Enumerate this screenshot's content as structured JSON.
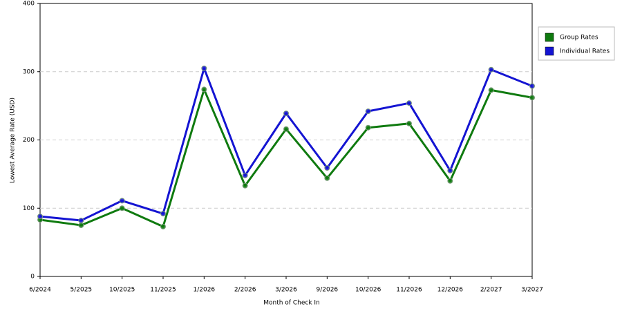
{
  "chart_data": {
    "type": "line",
    "x_label": "Month of Check In",
    "y_label": "Lowest Average Rate (USD)",
    "categories": [
      "6/2024",
      "5/2025",
      "10/2025",
      "11/2025",
      "1/2026",
      "2/2026",
      "3/2026",
      "9/2026",
      "10/2026",
      "11/2026",
      "12/2026",
      "2/2027",
      "3/2027"
    ],
    "series": [
      {
        "name": "Group Rates",
        "color": "#0f7a0f",
        "values": [
          83,
          75,
          100,
          73,
          274,
          133,
          216,
          144,
          218,
          224,
          140,
          273,
          262
        ]
      },
      {
        "name": "Individual Rates",
        "color": "#1414d2",
        "values": [
          88,
          82,
          111,
          92,
          305,
          148,
          239,
          159,
          242,
          254,
          155,
          303,
          279
        ]
      }
    ],
    "ylim": [
      0,
      400
    ],
    "yticks": [
      0,
      100,
      200,
      300,
      400
    ],
    "grid": true,
    "legend": "right"
  }
}
